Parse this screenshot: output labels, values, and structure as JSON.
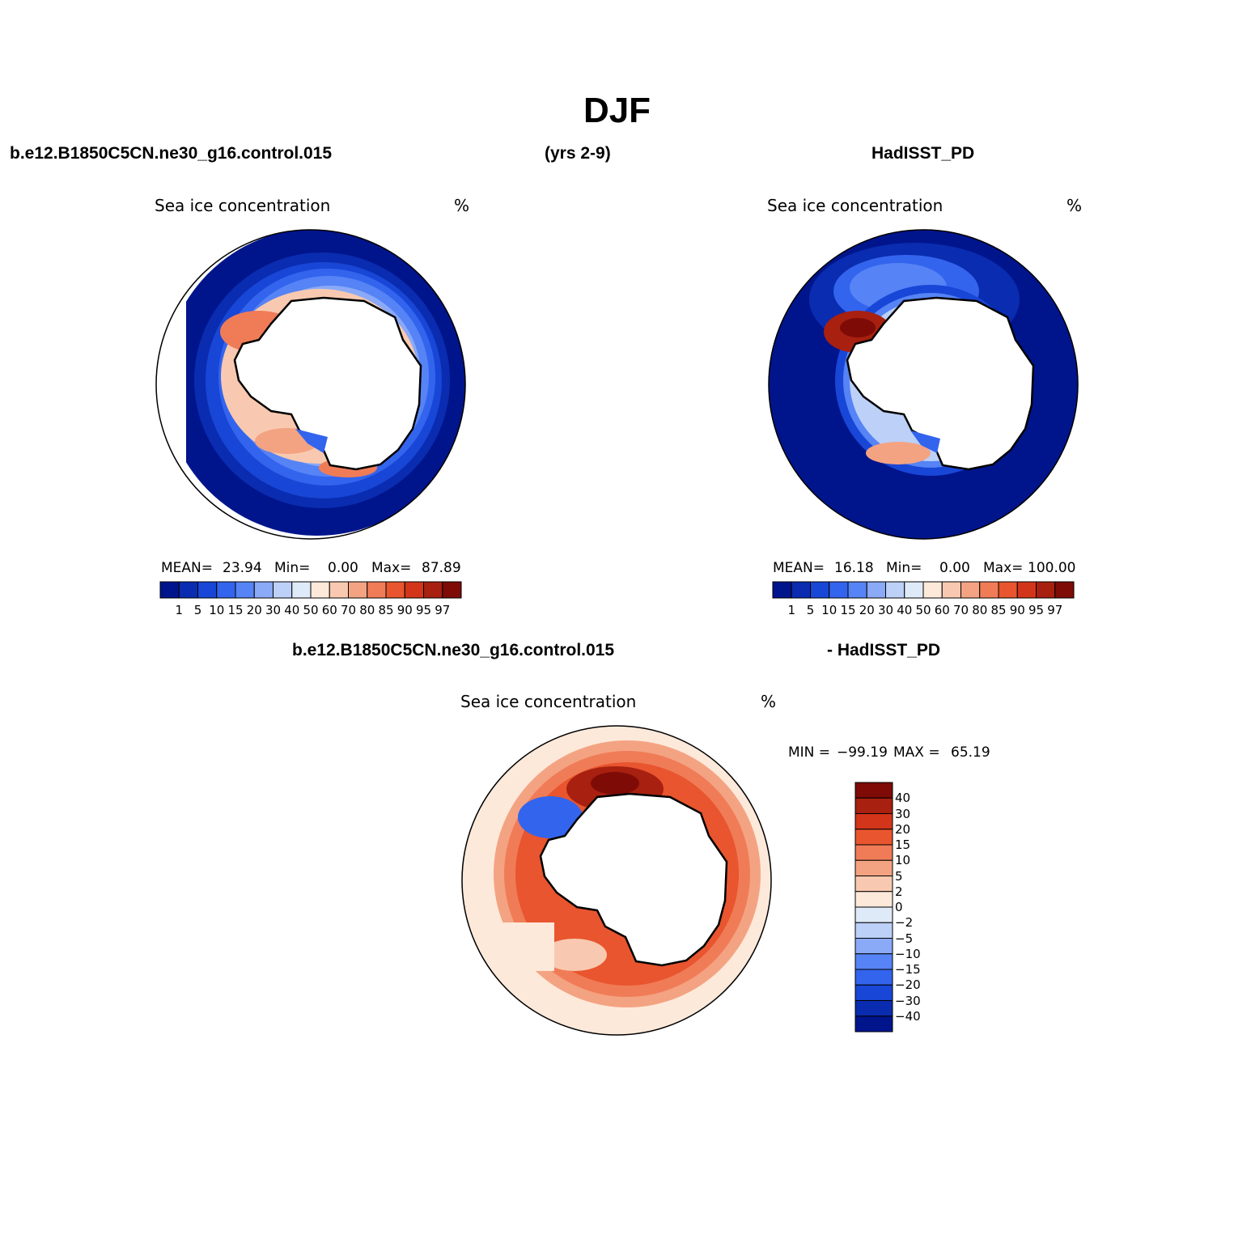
{
  "figure": {
    "title": "DJF",
    "case_name": "b.e12.B1850C5CN.ne30_g16.control.015",
    "years": "(yrs 2-9)",
    "reference_name": "HadISST_PD"
  },
  "panels": [
    {
      "id": "model",
      "title": "Sea ice concentration",
      "units": "%",
      "stats": {
        "mean_label": "MEAN=",
        "mean": "23.94",
        "min_label": "Min=",
        "min": "0.00",
        "max_label": "Max=",
        "max": "87.89"
      }
    },
    {
      "id": "observed",
      "title": "Sea ice concentration",
      "units": "%",
      "stats": {
        "mean_label": "MEAN=",
        "mean": "16.18",
        "min_label": "Min=",
        "min": "0.00",
        "max_label": "Max=",
        "max": "100.00"
      }
    },
    {
      "id": "difference",
      "title_left": "b.e12.B1850C5CN.ne30_g16.control.015",
      "title_right": "- HadISST_PD",
      "title": "Sea ice concentration",
      "units": "%",
      "stats": {
        "min_label": "MIN =",
        "min": "−99.19",
        "max_label": "MAX =",
        "max": "65.19"
      }
    }
  ],
  "colorbar_concentration": {
    "levels": [
      "1",
      "5",
      "10",
      "15",
      "20",
      "30",
      "40",
      "50",
      "60",
      "70",
      "80",
      "85",
      "90",
      "95",
      "97"
    ],
    "colors": [
      "#00158c",
      "#0a2cb0",
      "#1846d6",
      "#3364ee",
      "#5683f5",
      "#8aa9f7",
      "#bcd0f8",
      "#dfeaf8",
      "#fde9da",
      "#f8c9b0",
      "#f4a382",
      "#f07c57",
      "#e8552e",
      "#d3351a",
      "#a82010",
      "#7e0b06"
    ]
  },
  "colorbar_difference": {
    "levels": [
      "40",
      "30",
      "20",
      "15",
      "10",
      "5",
      "2",
      "0",
      "−2",
      "−5",
      "−10",
      "−15",
      "−20",
      "−30",
      "−40"
    ],
    "colors": [
      "#7e0b06",
      "#a82010",
      "#d3351a",
      "#e8552e",
      "#f07c57",
      "#f4a382",
      "#f8c9b0",
      "#fde9da",
      "#dfeaf8",
      "#bcd0f8",
      "#8aa9f7",
      "#5683f5",
      "#3364ee",
      "#1846d6",
      "#0a2cb0",
      "#00158c"
    ]
  }
}
